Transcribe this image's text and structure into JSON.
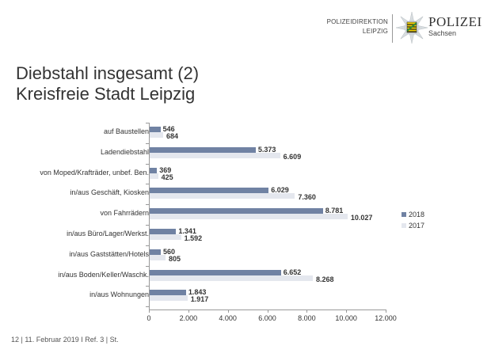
{
  "header": {
    "dept_line1": "POLIZEIDIREKTION",
    "dept_line2": "LEIPZIG",
    "brand_main": "POLIZEI",
    "brand_sub": "Sachsen"
  },
  "title": {
    "line1": "Diebstahl insgesamt (2)",
    "line2": "Kreisfreie Stadt Leipzig"
  },
  "footer": {
    "text": "12  | 11. Februar 2019  I Ref. 3 | St."
  },
  "colors": {
    "series_2018": "#7082a3",
    "series_2017": "#e4e7ee"
  },
  "chart_data": {
    "type": "bar",
    "orientation": "horizontal",
    "title": "Diebstahl insgesamt (2) Kreisfreie Stadt Leipzig",
    "xlabel": "",
    "ylabel": "",
    "categories": [
      "auf Baustellen",
      "Ladendiebstahl",
      "von Moped/Krafträder, unbef. Ben.",
      "in/aus Geschäft, Kiosken",
      "von Fahrrädern",
      "in/aus Büro/Lager/Werkst.",
      "in/aus Gaststätten/Hotels",
      "in/aus Boden/Keller/Waschk.",
      "in/aus Wohnungen"
    ],
    "series": [
      {
        "name": "2018",
        "values": [
          546,
          5373,
          369,
          6029,
          8781,
          1341,
          560,
          6652,
          1843
        ],
        "labels": [
          "546",
          "5.373",
          "369",
          "6.029",
          "8.781",
          "1.341",
          "560",
          "6.652",
          "1.843"
        ]
      },
      {
        "name": "2017",
        "values": [
          684,
          6609,
          425,
          7360,
          10027,
          1592,
          805,
          8268,
          1917
        ],
        "labels": [
          "684",
          "6.609",
          "425",
          "7.360",
          "10.027",
          "1.592",
          "805",
          "8.268",
          "1.917"
        ]
      }
    ],
    "xlim": [
      0,
      12000
    ],
    "xticks": [
      0,
      2000,
      4000,
      6000,
      8000,
      10000,
      12000
    ],
    "xtick_labels": [
      "0",
      "2.000",
      "4.000",
      "6.000",
      "8.000",
      "10.000",
      "12.000"
    ],
    "grid": false,
    "legend_position": "right",
    "legend": [
      "2018",
      "2017"
    ]
  }
}
